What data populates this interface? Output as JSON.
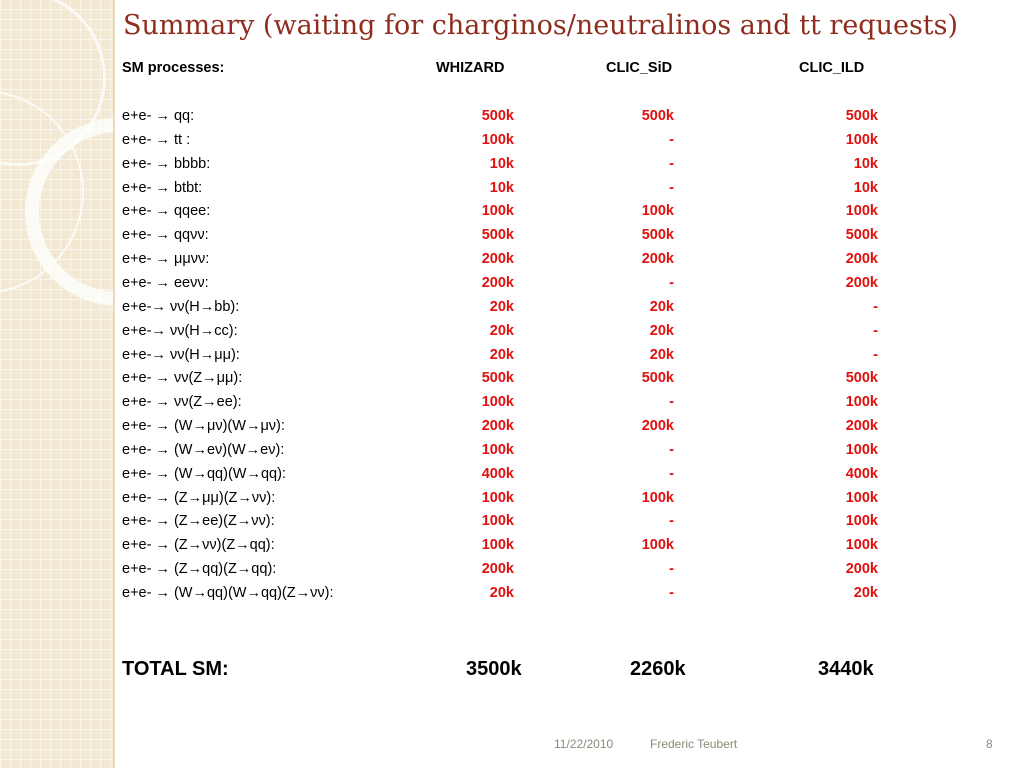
{
  "title": "Summary (waiting for charginos/neutralinos and tt requests)",
  "header": {
    "processes_label": "SM processes:",
    "columns": [
      "WHIZARD",
      "CLIC_SiD",
      "CLIC_ILD"
    ]
  },
  "rows": [
    {
      "process": "e+e- → qq:",
      "whizard": "500k",
      "clic_sid": "500k",
      "clic_ild": "500k"
    },
    {
      "process": "e+e- → tt :",
      "whizard": "100k",
      "clic_sid": "-",
      "clic_ild": "100k"
    },
    {
      "process": "e+e- → bbbb:",
      "whizard": "10k",
      "clic_sid": "-",
      "clic_ild": "10k"
    },
    {
      "process": "e+e- → btbt:",
      "whizard": "10k",
      "clic_sid": "-",
      "clic_ild": "10k"
    },
    {
      "process": "e+e- → qqee:",
      "whizard": "100k",
      "clic_sid": "100k",
      "clic_ild": "100k"
    },
    {
      "process": "e+e- → qqνν:",
      "whizard": "500k",
      "clic_sid": "500k",
      "clic_ild": "500k"
    },
    {
      "process": "e+e- → μμνν:",
      "whizard": "200k",
      "clic_sid": "200k",
      "clic_ild": "200k"
    },
    {
      "process": "e+e- → eeνν:",
      "whizard": "200k",
      "clic_sid": "-",
      "clic_ild": "200k"
    },
    {
      "process": "e+e-→ νν(H→bb):",
      "whizard": "20k",
      "clic_sid": "20k",
      "clic_ild": "-"
    },
    {
      "process": "e+e-→ νν(H→cc):",
      "whizard": "20k",
      "clic_sid": "20k",
      "clic_ild": "-"
    },
    {
      "process": "e+e-→ νν(H→μμ):",
      "whizard": "20k",
      "clic_sid": "20k",
      "clic_ild": "-"
    },
    {
      "process": "e+e- → νν(Z→μμ):",
      "whizard": "500k",
      "clic_sid": "500k",
      "clic_ild": "500k"
    },
    {
      "process": "e+e- → νν(Z→ee):",
      "whizard": "100k",
      "clic_sid": "-",
      "clic_ild": "100k"
    },
    {
      "process": "e+e- → (W→μν)(W→μν):",
      "whizard": "200k",
      "clic_sid": "200k",
      "clic_ild": "200k"
    },
    {
      "process": "e+e- → (W→eν)(W→eν):",
      "whizard": "100k",
      "clic_sid": "-",
      "clic_ild": "100k"
    },
    {
      "process": "e+e- → (W→qq)(W→qq):",
      "whizard": "400k",
      "clic_sid": "-",
      "clic_ild": "400k"
    },
    {
      "process": "e+e- → (Z→μμ)(Z→νν):",
      "whizard": "100k",
      "clic_sid": "100k",
      "clic_ild": "100k"
    },
    {
      "process": "e+e- → (Z→ee)(Z→νν):",
      "whizard": "100k",
      "clic_sid": "-",
      "clic_ild": "100k"
    },
    {
      "process": "e+e- → (Z→νν)(Z→qq):",
      "whizard": "100k",
      "clic_sid": "100k",
      "clic_ild": "100k"
    },
    {
      "process": "e+e- → (Z→qq)(Z→qq):",
      "whizard": "200k",
      "clic_sid": "-",
      "clic_ild": "200k"
    },
    {
      "process": "e+e- → (W→qq)(W→qq)(Z→νν):",
      "whizard": "20k",
      "clic_sid": "-",
      "clic_ild": "20k"
    }
  ],
  "total": {
    "label": "TOTAL SM:",
    "whizard": "3500k",
    "clic_sid": "2260k",
    "clic_ild": "3440k"
  },
  "footer": {
    "date": "11/22/2010",
    "author": "Frederic Teubert",
    "page": "8"
  },
  "colors": {
    "title": "#8f2d1e",
    "values": "#e0100e",
    "sidebar": "#f3e9d2",
    "footer": "#8a8a7a"
  }
}
